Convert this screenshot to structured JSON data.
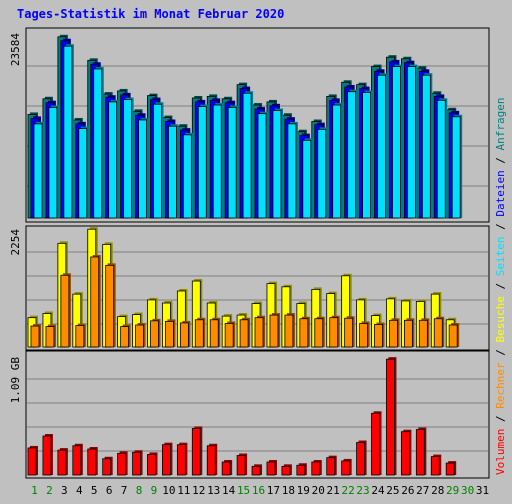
{
  "colors": {
    "background": "#c0c0c0",
    "title": "#0000ff",
    "requests": "#008080",
    "files": "#0000ff",
    "pages": "#00e0ff",
    "visits": "#ffff00",
    "hosts": "#ff8c00",
    "volume": "#ff0000",
    "weekend_day": "#008000",
    "day": "#000000"
  },
  "chart_data": {
    "type": "bar",
    "title": "Tages-Statistik im Monat Februar 2020",
    "grid": true,
    "legend": [
      {
        "key": "volume",
        "label": "Volumen"
      },
      {
        "key": "hosts",
        "label": "Rechner"
      },
      {
        "key": "visits",
        "label": "Besuche"
      },
      {
        "key": "pages",
        "label": "Seiten"
      },
      {
        "key": "files",
        "label": "Dateien"
      },
      {
        "key": "requests",
        "label": "Anfragen"
      }
    ],
    "legend_separator": " / ",
    "legend_placement": "right (vertical)",
    "categories": [
      "1",
      "2",
      "3",
      "4",
      "5",
      "6",
      "7",
      "8",
      "9",
      "10",
      "11",
      "12",
      "13",
      "14",
      "15",
      "16",
      "17",
      "18",
      "19",
      "20",
      "21",
      "22",
      "23",
      "24",
      "25",
      "26",
      "27",
      "28",
      "29",
      "30",
      "31"
    ],
    "weekend_days": [
      "1",
      "2",
      "8",
      "9",
      "15",
      "16",
      "22",
      "23",
      "29",
      "30"
    ],
    "panels": [
      {
        "name": "requests",
        "ymax": 23584,
        "ylim": [
          0,
          23584
        ],
        "tick_label": "23584",
        "series": [
          {
            "key": "requests",
            "values": [
              13200,
              15200,
              23100,
              12500,
              20100,
              15800,
              16200,
              13600,
              15600,
              12800,
              11700,
              15300,
              15500,
              15200,
              17000,
              14400,
              14800,
              13100,
              11000,
              12300,
              15500,
              17300,
              17000,
              19300,
              20500,
              20300,
              19100,
              15900,
              13800,
              null,
              null
            ]
          },
          {
            "key": "files",
            "values": [
              12700,
              14700,
              22600,
              12000,
              19600,
              15400,
              15700,
              13100,
              15100,
              12300,
              11200,
              14800,
              15000,
              14700,
              16500,
              13900,
              14300,
              12600,
              10500,
              11900,
              15000,
              16700,
              16500,
              18700,
              19900,
              19800,
              18700,
              15500,
              13400,
              null,
              null
            ]
          },
          {
            "key": "pages",
            "values": [
              12000,
              14100,
              21900,
              11400,
              19000,
              14800,
              15100,
              12500,
              14500,
              11700,
              10600,
              14200,
              14400,
              14100,
              15900,
              13300,
              13700,
              12000,
              9900,
              11300,
              14400,
              16100,
              16000,
              18200,
              19300,
              19300,
              18200,
              15000,
              12900,
              null,
              null
            ]
          }
        ]
      },
      {
        "name": "visits",
        "ymax": 2254,
        "ylim": [
          0,
          2254
        ],
        "tick_label": "2254",
        "series": [
          {
            "key": "visits",
            "values": [
              560,
              640,
              1980,
              1010,
              2250,
              1960,
              580,
              620,
              900,
              840,
              1070,
              1260,
              840,
              590,
              610,
              830,
              1210,
              1150,
              830,
              1100,
              1020,
              1360,
              900,
              600,
              920,
              880,
              870,
              1010,
              520,
              null,
              null
            ]
          },
          {
            "key": "hosts",
            "values": [
              400,
              390,
              1370,
              410,
              1720,
              1560,
              390,
              420,
              500,
              490,
              460,
              520,
              520,
              450,
              520,
              560,
              610,
              610,
              540,
              540,
              560,
              550,
              450,
              430,
              510,
              510,
              510,
              540,
              420,
              null,
              null
            ]
          }
        ]
      },
      {
        "name": "volume",
        "ymax": 1.09,
        "ylim": [
          0,
          1.09
        ],
        "tick_label": "1.09 GB",
        "series": [
          {
            "key": "volume",
            "values": [
              0.25,
              0.36,
              0.23,
              0.27,
              0.24,
              0.15,
              0.2,
              0.21,
              0.19,
              0.28,
              0.28,
              0.43,
              0.27,
              0.12,
              0.18,
              0.08,
              0.12,
              0.08,
              0.09,
              0.12,
              0.16,
              0.13,
              0.3,
              0.57,
              1.07,
              0.4,
              0.42,
              0.17,
              0.11,
              null,
              null
            ]
          }
        ]
      }
    ]
  }
}
